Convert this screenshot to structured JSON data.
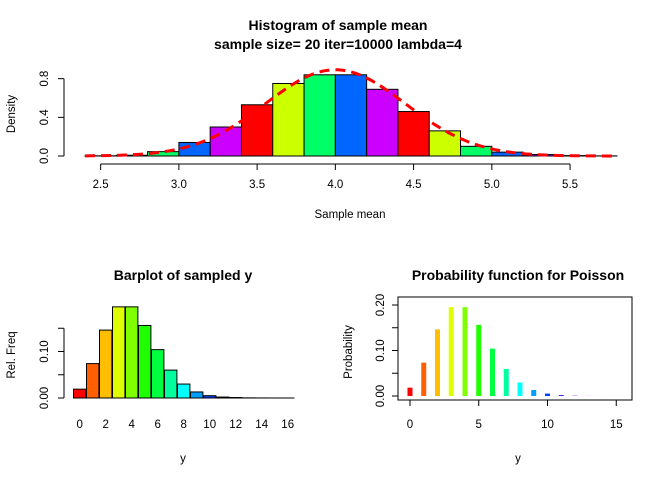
{
  "chart_data": [
    {
      "type": "bar",
      "title": "Histogram of sample mean",
      "subtitle": "sample size= 20 iter=10000 lambda=4",
      "xlabel": "Sample mean",
      "ylabel": "Density",
      "xlim": [
        2.4,
        5.8
      ],
      "ylim": [
        0,
        0.9
      ],
      "xticks": [
        "2.5",
        "3.0",
        "3.5",
        "4.0",
        "4.5",
        "5.0",
        "5.5"
      ],
      "yticks": [
        "0.0",
        "0.4",
        "0.8"
      ],
      "bin_edges": [
        2.4,
        2.6,
        2.8,
        3.0,
        3.2,
        3.4,
        3.6,
        3.8,
        4.0,
        4.2,
        4.4,
        4.6,
        4.8,
        5.0,
        5.2,
        5.4,
        5.6,
        5.8
      ],
      "values": [
        0.002,
        0.008,
        0.045,
        0.14,
        0.3,
        0.53,
        0.75,
        0.84,
        0.84,
        0.69,
        0.46,
        0.26,
        0.1,
        0.04,
        0.015,
        0.004,
        0.001
      ],
      "bar_colors": [
        "#FF0000",
        "#CCFF00",
        "#00FF66",
        "#0066FF",
        "#CC00FF"
      ],
      "density_curve": {
        "color": "#FF0000",
        "style": "dashed",
        "mean": 4,
        "sd": 0.4472
      },
      "grid": false,
      "legend": "none"
    },
    {
      "type": "bar",
      "title": "Barplot of sampled y",
      "xlabel": "y",
      "ylabel": "Rel. Freq",
      "ylim": [
        0,
        0.2
      ],
      "categories": [
        "0",
        "1",
        "2",
        "3",
        "4",
        "5",
        "6",
        "7",
        "8",
        "9",
        "10",
        "11",
        "12",
        "13",
        "14",
        "15",
        "16"
      ],
      "xtick_labels": [
        "0",
        "2",
        "4",
        "6",
        "8",
        "10",
        "12",
        "14",
        "16"
      ],
      "yticks": [
        "0.00",
        "0.10"
      ],
      "values": [
        0.019,
        0.074,
        0.146,
        0.196,
        0.196,
        0.156,
        0.104,
        0.06,
        0.03,
        0.013,
        0.005,
        0.002,
        0.001,
        0.0003,
        0.0001,
        3e-05,
        1e-05
      ],
      "bar_colors": [
        "#FF0000",
        "#FF5F00",
        "#FFBF00",
        "#DFFF00",
        "#80FF00",
        "#20FF00",
        "#00FF40",
        "#00FF9F",
        "#00FFFF",
        "#009FFF",
        "#0040FF",
        "#2000FF",
        "#8000FF",
        "#DF00FF",
        "#FF00BF",
        "#FF005F",
        "#FF0000"
      ],
      "grid": false,
      "legend": "none"
    },
    {
      "type": "bar",
      "title": "Probability function for Poisson",
      "xlabel": "y",
      "ylabel": "Probability",
      "xlim": [
        0,
        16
      ],
      "ylim": [
        0,
        0.2
      ],
      "xticks": [
        "0",
        "5",
        "10",
        "15"
      ],
      "yticks": [
        "0.00",
        "0.10",
        "0.20"
      ],
      "x": [
        0,
        1,
        2,
        3,
        4,
        5,
        6,
        7,
        8,
        9,
        10,
        11,
        12,
        13,
        14,
        15,
        16
      ],
      "values": [
        0.0183,
        0.0733,
        0.1465,
        0.1954,
        0.1954,
        0.1563,
        0.1042,
        0.0595,
        0.0298,
        0.0132,
        0.0053,
        0.0019,
        0.0006,
        0.0002,
        0.0001,
        0.0,
        0.0
      ],
      "bar_colors": [
        "#FF0000",
        "#FF5F00",
        "#FFBF00",
        "#DFFF00",
        "#80FF00",
        "#20FF00",
        "#00FF40",
        "#00FF9F",
        "#00FFFF",
        "#009FFF",
        "#0040FF",
        "#2000FF",
        "#8000FF",
        "#DF00FF",
        "#FF00BF",
        "#FF005F",
        "#FF0000"
      ],
      "grid": false,
      "legend": "none"
    }
  ]
}
